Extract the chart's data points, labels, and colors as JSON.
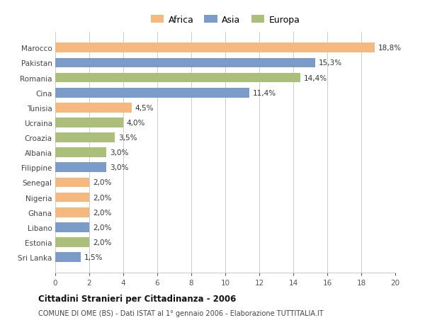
{
  "categories": [
    "Sri Lanka",
    "Estonia",
    "Libano",
    "Ghana",
    "Nigeria",
    "Senegal",
    "Filippine",
    "Albania",
    "Croazia",
    "Ucraina",
    "Tunisia",
    "Cina",
    "Romania",
    "Pakistan",
    "Marocco"
  ],
  "values": [
    1.5,
    2.0,
    2.0,
    2.0,
    2.0,
    2.0,
    3.0,
    3.0,
    3.5,
    4.0,
    4.5,
    11.4,
    14.4,
    15.3,
    18.8
  ],
  "labels": [
    "1,5%",
    "2,0%",
    "2,0%",
    "2,0%",
    "2,0%",
    "2,0%",
    "3,0%",
    "3,0%",
    "3,5%",
    "4,0%",
    "4,5%",
    "11,4%",
    "14,4%",
    "15,3%",
    "18,8%"
  ],
  "continents": [
    "Asia",
    "Europa",
    "Asia",
    "Africa",
    "Africa",
    "Africa",
    "Asia",
    "Europa",
    "Europa",
    "Europa",
    "Africa",
    "Asia",
    "Europa",
    "Asia",
    "Africa"
  ],
  "colors": {
    "Africa": "#F5B97F",
    "Asia": "#7B9CC8",
    "Europa": "#ABBE7A"
  },
  "legend_labels": [
    "Africa",
    "Asia",
    "Europa"
  ],
  "legend_colors": [
    "#F5B97F",
    "#7B9CC8",
    "#ABBE7A"
  ],
  "xlim": [
    0,
    20
  ],
  "xticks": [
    0,
    2,
    4,
    6,
    8,
    10,
    12,
    14,
    16,
    18,
    20
  ],
  "title": "Cittadini Stranieri per Cittadinanza - 2006",
  "subtitle": "COMUNE DI OME (BS) - Dati ISTAT al 1° gennaio 2006 - Elaborazione TUTTITALIA.IT",
  "bg_color": "#ffffff",
  "grid_color": "#cccccc",
  "label_fontsize": 7.5,
  "tick_fontsize": 7.5,
  "bar_height": 0.65
}
